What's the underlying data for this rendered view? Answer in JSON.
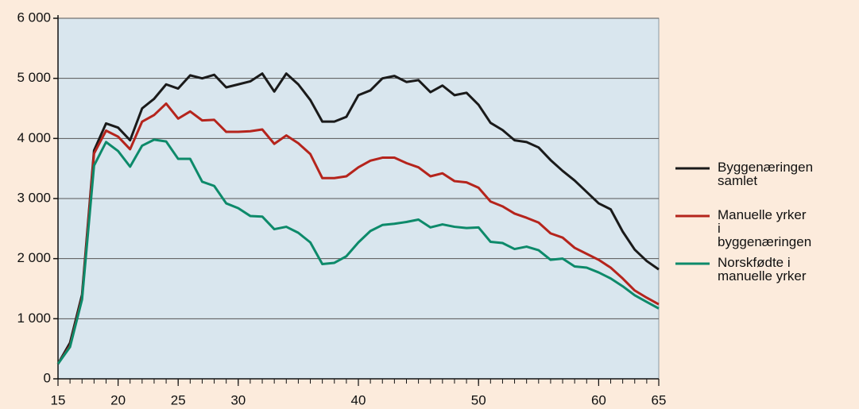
{
  "chart_data": {
    "type": "line",
    "x": [
      15,
      16,
      17,
      18,
      19,
      20,
      21,
      22,
      23,
      24,
      25,
      26,
      27,
      28,
      29,
      30,
      31,
      32,
      33,
      34,
      35,
      36,
      37,
      38,
      39,
      40,
      41,
      42,
      43,
      44,
      45,
      46,
      47,
      48,
      49,
      50,
      51,
      52,
      53,
      54,
      55,
      56,
      57,
      58,
      59,
      60,
      61,
      62,
      63,
      64,
      65
    ],
    "xlim": [
      15,
      65
    ],
    "xticks": [
      15,
      20,
      25,
      30,
      40,
      50,
      60,
      65
    ],
    "ylim": [
      0,
      6000
    ],
    "yticks": [
      0,
      {
        "value": 1000,
        "label": "1 000"
      },
      {
        "value": 2000,
        "label": "2 000"
      },
      {
        "value": 3000,
        "label": "3 000"
      },
      {
        "value": 4000,
        "label": "4 000"
      },
      {
        "value": 5000,
        "label": "5 000"
      },
      {
        "value": 6000,
        "label": "6 000"
      }
    ],
    "grid": true,
    "legend": "right",
    "series": [
      {
        "name": "Byggenæringen samlet",
        "color": "#1a1a1a",
        "values": [
          250,
          600,
          1400,
          3800,
          4250,
          4180,
          3970,
          4500,
          4660,
          4900,
          4830,
          5050,
          5000,
          5060,
          4850,
          4900,
          4950,
          5080,
          4780,
          5080,
          4900,
          4640,
          4280,
          4280,
          4360,
          4720,
          4800,
          5000,
          5040,
          4940,
          4970,
          4770,
          4880,
          4720,
          4760,
          4560,
          4260,
          4140,
          3970,
          3940,
          3850,
          3640,
          3460,
          3300,
          3110,
          2920,
          2820,
          2450,
          2150,
          1960,
          1820
        ]
      },
      {
        "name": "Manuelle yrker i byggenæringen",
        "color": "#b5241c",
        "values": [
          250,
          550,
          1350,
          3750,
          4130,
          4030,
          3820,
          4280,
          4390,
          4580,
          4330,
          4450,
          4300,
          4310,
          4110,
          4110,
          4120,
          4150,
          3910,
          4050,
          3920,
          3740,
          3340,
          3340,
          3370,
          3520,
          3630,
          3680,
          3680,
          3590,
          3520,
          3370,
          3420,
          3290,
          3270,
          3180,
          2950,
          2870,
          2750,
          2680,
          2600,
          2420,
          2350,
          2180,
          2080,
          1980,
          1850,
          1670,
          1470,
          1350,
          1240
        ]
      },
      {
        "name": "Norskfødte i manuelle yrker",
        "color": "#0d8a6a",
        "values": [
          250,
          530,
          1320,
          3550,
          3940,
          3790,
          3530,
          3880,
          3980,
          3950,
          3660,
          3660,
          3280,
          3210,
          2920,
          2840,
          2710,
          2700,
          2490,
          2530,
          2430,
          2270,
          1910,
          1930,
          2040,
          2270,
          2460,
          2560,
          2580,
          2610,
          2650,
          2520,
          2570,
          2530,
          2510,
          2520,
          2280,
          2260,
          2160,
          2200,
          2140,
          1980,
          2000,
          1870,
          1850,
          1770,
          1670,
          1540,
          1390,
          1280,
          1170
        ]
      }
    ]
  }
}
